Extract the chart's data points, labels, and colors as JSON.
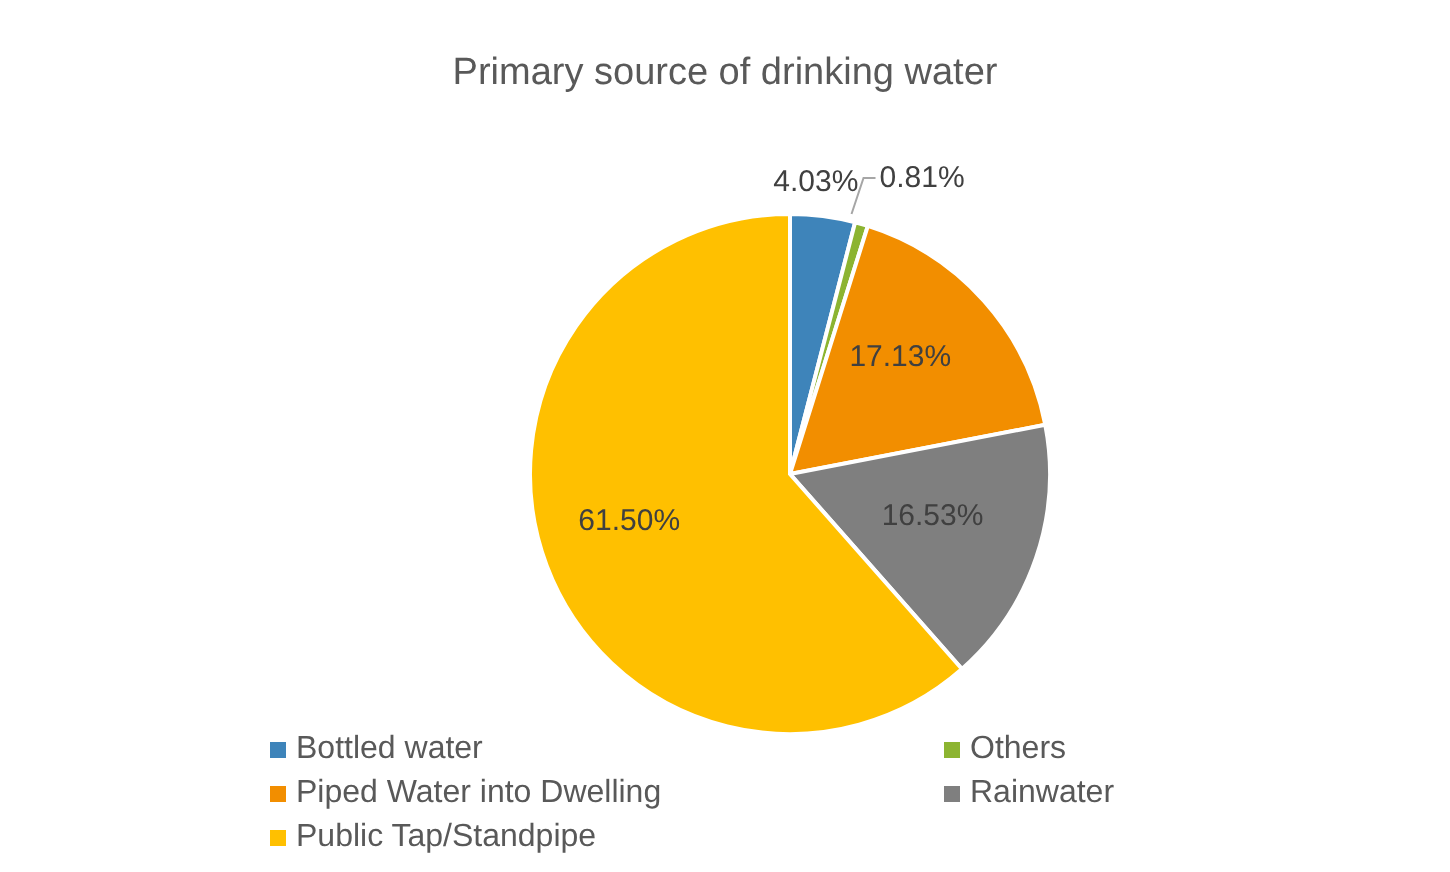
{
  "chart_data": {
    "type": "pie",
    "title": "Primary source of drinking water",
    "categories": [
      "Bottled water",
      "Others",
      "Piped Water into Dwelling",
      "Rainwater",
      "Public Tap/Standpipe"
    ],
    "values": [
      4.03,
      0.81,
      17.13,
      16.53,
      61.5
    ],
    "value_labels": [
      "4.03%",
      "0.81%",
      "17.13%",
      "16.53%",
      "61.50%"
    ],
    "colors": [
      "#3e84ba",
      "#8cb431",
      "#f28e00",
      "#7f7f7f",
      "#ffc000"
    ],
    "legend": "bottom"
  }
}
